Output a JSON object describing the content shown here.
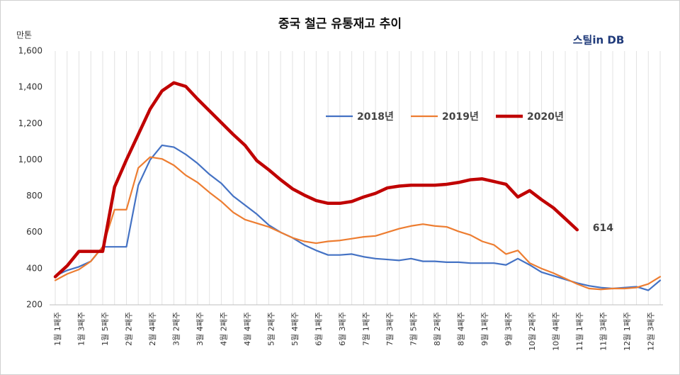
{
  "chart_data": {
    "type": "line",
    "title": "중국 철근 유통재고 추이",
    "y_unit": "만톤",
    "logo": "스틸in DB",
    "categories": [
      "1월 1째주",
      null,
      "1월 3째주",
      null,
      "1월 5째주",
      null,
      "2월 2째주",
      null,
      "2월 4째주",
      null,
      "3월 2째주",
      null,
      "3월 4째주",
      null,
      "4월 2째주",
      null,
      "4월 4째주",
      null,
      "5월 2째주",
      null,
      "5월 4째주",
      null,
      "6월 1째주",
      null,
      "6월 3째주",
      null,
      "7월 1째주",
      null,
      "7월 3째주",
      null,
      "7월 5째주",
      null,
      "8월 2째주",
      null,
      "8월 4째주",
      null,
      "9월 1째주",
      null,
      "9월 3째주",
      null,
      "10월 2째주",
      null,
      "10월 4째주",
      null,
      "11월 1째주",
      null,
      "11월 3째주",
      null,
      "12월 1째주",
      null,
      "12월 3째주",
      null
    ],
    "series": [
      {
        "name": "2018년",
        "color": "#4472c4",
        "width": 2.2,
        "values": [
          360,
          390,
          410,
          440,
          520,
          520,
          520,
          860,
          1000,
          1080,
          1070,
          1030,
          980,
          920,
          870,
          800,
          750,
          700,
          640,
          600,
          570,
          530,
          500,
          475,
          475,
          480,
          465,
          455,
          450,
          445,
          455,
          440,
          440,
          435,
          435,
          430,
          430,
          430,
          420,
          455,
          420,
          380,
          360,
          340,
          320,
          305,
          295,
          290,
          295,
          300,
          280,
          335
        ]
      },
      {
        "name": "2019년",
        "color": "#ed7d31",
        "width": 2.2,
        "values": [
          335,
          370,
          395,
          440,
          520,
          725,
          725,
          955,
          1015,
          1005,
          970,
          915,
          875,
          820,
          770,
          710,
          670,
          650,
          630,
          600,
          570,
          550,
          540,
          550,
          555,
          565,
          575,
          580,
          600,
          620,
          635,
          645,
          635,
          630,
          605,
          585,
          550,
          530,
          480,
          500,
          430,
          400,
          375,
          345,
          315,
          290,
          285,
          290,
          290,
          295,
          315,
          355
        ]
      },
      {
        "name": "2020년",
        "color": "#c00000",
        "width": 4.5,
        "values": [
          355,
          415,
          495,
          495,
          495,
          850,
          1000,
          1140,
          1280,
          1380,
          1425,
          1405,
          1335,
          1270,
          1205,
          1140,
          1080,
          995,
          945,
          890,
          840,
          805,
          775,
          760,
          760,
          770,
          795,
          815,
          845,
          855,
          860,
          860,
          860,
          865,
          875,
          890,
          895,
          880,
          865,
          795,
          830,
          780,
          735,
          675,
          614,
          null,
          null,
          null,
          null,
          null,
          null,
          null
        ]
      }
    ],
    "labeled_point": {
      "series": 2,
      "index": 44
    },
    "ylim": [
      200,
      1600
    ],
    "yticks": [
      200,
      400,
      600,
      800,
      {
        "value": 1000,
        "label": "1,000"
      },
      {
        "value": 1200,
        "label": "1,200"
      },
      {
        "value": 1400,
        "label": "1,400"
      },
      {
        "value": 1600,
        "label": "1,600"
      }
    ],
    "grid": "vertical"
  }
}
